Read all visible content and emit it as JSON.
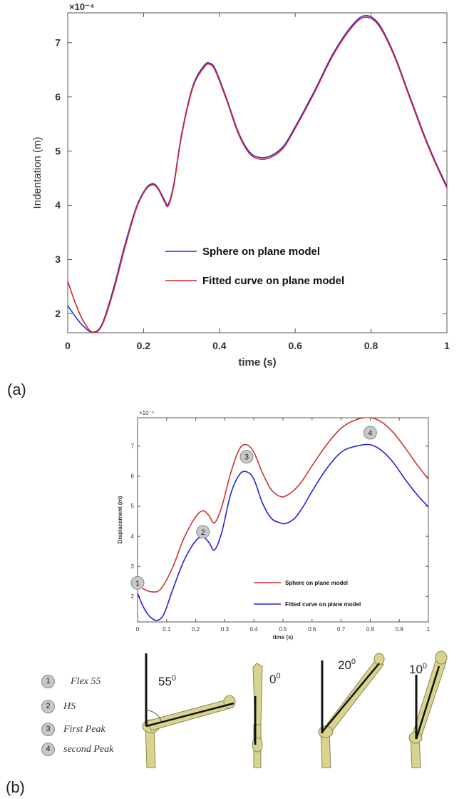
{
  "panel_labels": {
    "a": "(a)",
    "b": "(b)"
  },
  "colors": {
    "sphere_a": "#2233dd",
    "fitted_a": "#dd2222",
    "sphere_b": "#cc3333",
    "fitted_b": "#2222dd",
    "axis": "#555555",
    "bone": "#d8d490"
  },
  "chart_data": [
    {
      "type": "line",
      "xlabel": "time (s)",
      "ylabel": "Indentation (m)",
      "exponent_label": "×10⁻⁴",
      "xlim": [
        0,
        1
      ],
      "ylim": [
        1.65,
        7.55
      ],
      "xticks": [
        0,
        0.2,
        0.4,
        0.6,
        0.8,
        1
      ],
      "xtick_labels": [
        "0",
        "0.2",
        "0.4",
        "0.6",
        "0.8",
        "1"
      ],
      "yticks": [
        2,
        3,
        4,
        5,
        6,
        7
      ],
      "ytick_labels": [
        "2",
        "3",
        "4",
        "5",
        "6",
        "7"
      ],
      "grid": false,
      "legend_position": "center",
      "series": [
        {
          "name": "Sphere on plane model",
          "color": "#2233dd",
          "x": [
            0,
            0.02,
            0.04,
            0.065,
            0.09,
            0.12,
            0.15,
            0.18,
            0.205,
            0.225,
            0.24,
            0.255,
            0.265,
            0.28,
            0.3,
            0.33,
            0.36,
            0.375,
            0.39,
            0.42,
            0.45,
            0.48,
            0.51,
            0.54,
            0.57,
            0.6,
            0.65,
            0.7,
            0.75,
            0.785,
            0.82,
            0.86,
            0.9,
            0.94,
            0.97,
            1.0
          ],
          "y": [
            2.15,
            1.95,
            1.78,
            1.66,
            1.8,
            2.45,
            3.25,
            3.95,
            4.3,
            4.4,
            4.3,
            4.1,
            4.02,
            4.4,
            5.3,
            6.2,
            6.58,
            6.62,
            6.5,
            5.95,
            5.35,
            4.98,
            4.88,
            4.93,
            5.1,
            5.45,
            6.1,
            6.8,
            7.32,
            7.5,
            7.35,
            6.8,
            6.05,
            5.3,
            4.8,
            4.35
          ]
        },
        {
          "name": "Fitted curve on plane model",
          "color": "#dd2222",
          "x": [
            0,
            0.02,
            0.04,
            0.065,
            0.09,
            0.12,
            0.15,
            0.18,
            0.205,
            0.225,
            0.24,
            0.255,
            0.265,
            0.28,
            0.3,
            0.33,
            0.36,
            0.375,
            0.39,
            0.42,
            0.45,
            0.48,
            0.51,
            0.54,
            0.57,
            0.6,
            0.65,
            0.7,
            0.75,
            0.785,
            0.82,
            0.86,
            0.9,
            0.94,
            0.97,
            1.0
          ],
          "y": [
            2.6,
            2.2,
            1.88,
            1.66,
            1.78,
            2.4,
            3.2,
            3.92,
            4.28,
            4.38,
            4.28,
            4.07,
            3.99,
            4.37,
            5.27,
            6.17,
            6.55,
            6.6,
            6.47,
            5.92,
            5.32,
            4.95,
            4.85,
            4.9,
            5.07,
            5.42,
            6.07,
            6.77,
            7.29,
            7.47,
            7.32,
            6.77,
            6.02,
            5.27,
            4.77,
            4.32
          ]
        }
      ]
    },
    {
      "type": "line",
      "xlabel": "time (s)",
      "ylabel": "Displacement (m)",
      "exponent_label": "×10⁻⁴",
      "xlim": [
        0,
        1
      ],
      "ylim": [
        1.15,
        7.95
      ],
      "xticks": [
        0,
        0.1,
        0.2,
        0.3,
        0.4,
        0.5,
        0.6,
        0.7,
        0.8,
        0.9,
        1
      ],
      "xtick_labels": [
        "0",
        "0.1",
        "0.2",
        "0.3",
        "0.4",
        "0.5",
        "0.6",
        "0.7",
        "0.8",
        "0.9",
        "1"
      ],
      "yticks": [
        2,
        3,
        4,
        5,
        6,
        7
      ],
      "ytick_labels": [
        "2",
        "3",
        "4",
        "5",
        "6",
        "7"
      ],
      "grid": false,
      "legend_position": "center-right",
      "series": [
        {
          "name": "Sphere on plane model",
          "color": "#cc3333",
          "x": [
            0,
            0.02,
            0.05,
            0.08,
            0.12,
            0.16,
            0.2,
            0.225,
            0.245,
            0.265,
            0.29,
            0.32,
            0.35,
            0.375,
            0.4,
            0.43,
            0.46,
            0.49,
            0.51,
            0.54,
            0.57,
            0.6,
            0.65,
            0.7,
            0.75,
            0.8,
            0.84,
            0.88,
            0.92,
            0.96,
            1.0
          ],
          "y": [
            2.4,
            2.25,
            2.15,
            2.25,
            2.95,
            3.95,
            4.65,
            4.85,
            4.7,
            4.45,
            5.0,
            6.1,
            6.9,
            7.05,
            6.8,
            6.1,
            5.55,
            5.33,
            5.35,
            5.55,
            5.9,
            6.35,
            7.05,
            7.6,
            7.88,
            7.95,
            7.8,
            7.45,
            6.95,
            6.4,
            5.9
          ]
        },
        {
          "name": "Fitted curve on plane model",
          "color": "#2222dd",
          "x": [
            0,
            0.02,
            0.04,
            0.065,
            0.09,
            0.12,
            0.16,
            0.2,
            0.225,
            0.245,
            0.265,
            0.29,
            0.32,
            0.35,
            0.375,
            0.4,
            0.43,
            0.46,
            0.49,
            0.51,
            0.54,
            0.57,
            0.6,
            0.65,
            0.7,
            0.75,
            0.8,
            0.84,
            0.88,
            0.92,
            0.96,
            1.0
          ],
          "y": [
            2.1,
            1.65,
            1.35,
            1.2,
            1.4,
            2.2,
            3.2,
            3.85,
            3.98,
            3.8,
            3.55,
            4.15,
            5.4,
            6.05,
            6.15,
            5.9,
            5.1,
            4.6,
            4.45,
            4.43,
            4.6,
            5.0,
            5.5,
            6.25,
            6.8,
            7.0,
            7.05,
            6.85,
            6.45,
            5.9,
            5.4,
            4.98
          ]
        }
      ],
      "markers": [
        {
          "label": "1",
          "x": 0.0,
          "y": 2.45
        },
        {
          "label": "2",
          "x": 0.225,
          "y": 4.15
        },
        {
          "label": "3",
          "x": 0.375,
          "y": 6.65
        },
        {
          "label": "4",
          "x": 0.8,
          "y": 7.45
        }
      ]
    }
  ],
  "legend_items": [
    {
      "num": "1",
      "text": "Flex 55"
    },
    {
      "num": "2",
      "text": "HS"
    },
    {
      "num": "3",
      "text": "First Peak"
    },
    {
      "num": "4",
      "text": "second Peak"
    }
  ],
  "angle_labels": [
    "55",
    "0",
    "20",
    "10"
  ],
  "angle_unit": "0"
}
